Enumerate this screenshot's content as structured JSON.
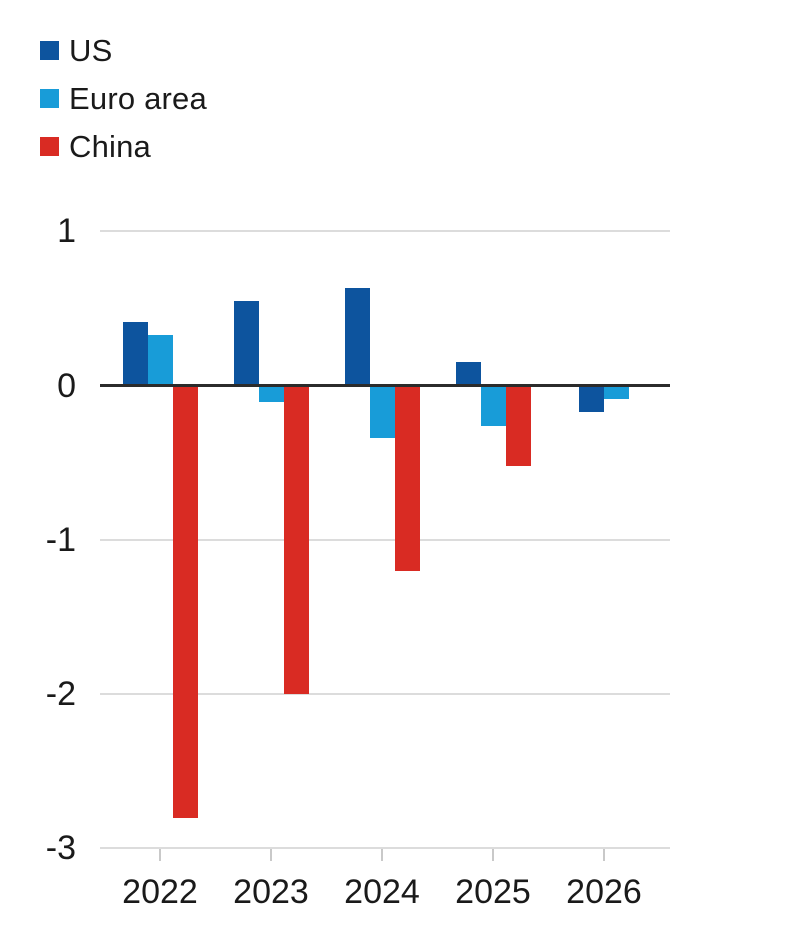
{
  "chart_data": {
    "type": "bar",
    "categories": [
      "2022",
      "2023",
      "2024",
      "2025",
      "2026"
    ],
    "series": [
      {
        "name": "US",
        "color": "#0d549e",
        "values": [
          0.41,
          0.55,
          0.63,
          0.15,
          -0.17
        ]
      },
      {
        "name": "Euro area",
        "color": "#189cd8",
        "values": [
          0.33,
          -0.11,
          -0.34,
          -0.26,
          -0.09
        ]
      },
      {
        "name": "China",
        "color": "#d92b23",
        "values": [
          -2.8,
          -2.0,
          -1.2,
          -0.52,
          null
        ]
      }
    ],
    "ylim": [
      -3,
      1
    ],
    "yticks": [
      1,
      0,
      -1,
      -2,
      -3
    ],
    "grid": true,
    "legend_position": "top-left",
    "axis_colors": {
      "zero_line": "#2b2b2b",
      "gridline": "#dcdcdc",
      "bottom_axis": "#c9c9c9",
      "text": "#1a1a1a"
    }
  }
}
